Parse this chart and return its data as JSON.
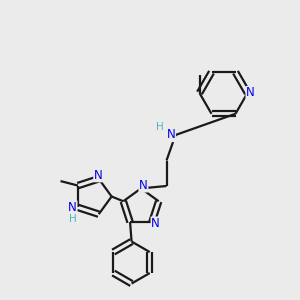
{
  "bg_color": "#ebebeb",
  "bond_color": "#1a1a1a",
  "N_color": "#0000ee",
  "H_color": "#4db8b8",
  "font_size_atom": 8.5,
  "line_width": 1.6,
  "figsize": [
    3.0,
    3.0
  ],
  "dpi": 100,
  "xlim": [
    0,
    10
  ],
  "ylim": [
    0,
    10
  ]
}
